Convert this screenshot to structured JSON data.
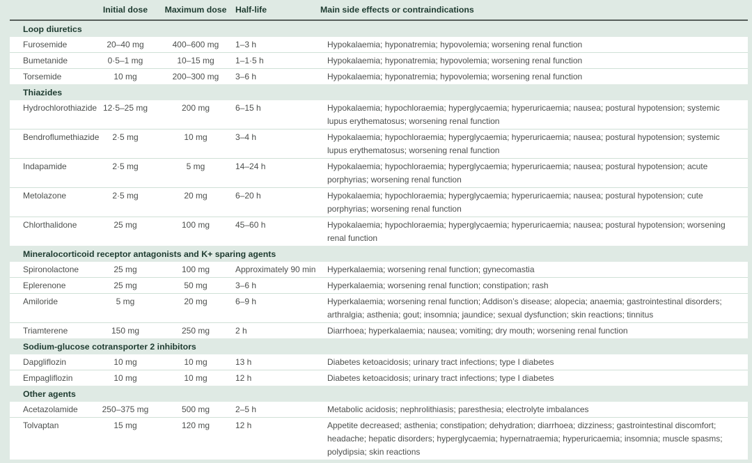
{
  "colors": {
    "band": "#dfeae4",
    "row_bg": "#ffffff",
    "rule": "#565e5a",
    "heading_text": "#1e3b30",
    "body_text": "#4c4f4d",
    "separator": "#cfe0d6"
  },
  "table": {
    "columns": [
      "",
      "Initial dose",
      "Maximum dose",
      "Half-life",
      "Main side effects or contraindications"
    ],
    "sections": [
      {
        "title": "Loop diuretics",
        "rows": [
          {
            "drug": "Furosemide",
            "initial": "20–40 mg",
            "max": "400–600 mg",
            "half_life": "1–3 h",
            "effects": "Hypokalaemia; hyponatremia; hypovolemia; worsening renal function"
          },
          {
            "drug": "Bumetanide",
            "initial": "0·5–1 mg",
            "max": "10–15 mg",
            "half_life": "1–1·5 h",
            "effects": "Hypokalaemia; hyponatremia; hypovolemia; worsening renal function"
          },
          {
            "drug": "Torsemide",
            "initial": "10 mg",
            "max": "200–300 mg",
            "half_life": "3–6 h",
            "effects": "Hypokalaemia; hyponatremia; hypovolemia; worsening renal function"
          }
        ]
      },
      {
        "title": "Thiazides",
        "rows": [
          {
            "drug": "Hydrochlorothiazide",
            "initial": "12·5–25 mg",
            "max": "200 mg",
            "half_life": "6–15 h",
            "effects": "Hypokalaemia; hypochloraemia; hyperglycaemia; hyperuricaemia; nausea; postural hypotension; systemic lupus erythematosus; worsening renal function"
          },
          {
            "drug": "Bendroflumethiazide",
            "initial": "2·5 mg",
            "max": "10 mg",
            "half_life": "3–4 h",
            "effects": "Hypokalaemia; hypochloraemia; hyperglycaemia; hyperuricaemia; nausea; postural hypotension; systemic lupus erythematosus; worsening renal function"
          },
          {
            "drug": "Indapamide",
            "initial": "2·5 mg",
            "max": "5 mg",
            "half_life": "14–24 h",
            "effects": "Hypokalaemia; hypochloraemia; hyperglycaemia; hyperuricaemia; nausea; postural hypotension; acute porphyrias; worsening renal function"
          },
          {
            "drug": "Metolazone",
            "initial": "2·5 mg",
            "max": "20 mg",
            "half_life": "6–20 h",
            "effects": "Hypokalaemia; hypochloraemia; hyperglycaemia; hyperuricaemia; nausea; postural hypotension; cute porphyrias; worsening renal function"
          },
          {
            "drug": "Chlorthalidone",
            "initial": "25 mg",
            "max": "100 mg",
            "half_life": "45–60 h",
            "effects": "Hypokalaemia; hypochloraemia; hyperglycaemia; hyperuricaemia; nausea; postural hypotension; worsening renal function"
          }
        ]
      },
      {
        "title": "Mineralocorticoid receptor antagonists and K+ sparing agents",
        "rows": [
          {
            "drug": "Spironolactone",
            "initial": "25 mg",
            "max": "100 mg",
            "half_life": "Approximately 90 min",
            "effects": "Hyperkalaemia; worsening renal function; gynecomastia"
          },
          {
            "drug": "Eplerenone",
            "initial": "25 mg",
            "max": "50 mg",
            "half_life": "3–6 h",
            "effects": "Hyperkalaemia; worsening renal function; constipation; rash"
          },
          {
            "drug": "Amiloride",
            "initial": "5 mg",
            "max": "20 mg",
            "half_life": "6–9 h",
            "effects": "Hyperkalaemia; worsening renal function; Addison’s disease; alopecia; anaemia; gastrointestinal disorders; arthralgia; asthenia; gout; insomnia; jaundice; sexual dysfunction; skin reactions; tinnitus"
          },
          {
            "drug": "Triamterene",
            "initial": "150 mg",
            "max": "250 mg",
            "half_life": "2 h",
            "effects": "Diarrhoea; hyperkalaemia; nausea; vomiting; dry mouth; worsening renal function"
          }
        ]
      },
      {
        "title": "Sodium-glucose cotransporter 2 inhibitors",
        "rows": [
          {
            "drug": "Dapgliflozin",
            "initial": "10 mg",
            "max": "10 mg",
            "half_life": "13 h",
            "effects": "Diabetes ketoacidosis; urinary tract infections; type I diabetes"
          },
          {
            "drug": "Empagliflozin",
            "initial": "10 mg",
            "max": "10 mg",
            "half_life": "12 h",
            "effects": "Diabetes ketoacidosis; urinary tract infections; type I diabetes"
          }
        ]
      },
      {
        "title": "Other agents",
        "rows": [
          {
            "drug": "Acetazolamide",
            "initial": "250–375 mg",
            "max": "500 mg",
            "half_life": "2–5 h",
            "effects": "Metabolic acidosis; nephrolithiasis; paresthesia; electrolyte imbalances"
          },
          {
            "drug": "Tolvaptan",
            "initial": "15 mg",
            "max": "120 mg",
            "half_life": "12 h",
            "effects": "Appetite decreased; asthenia; constipation; dehydration; diarrhoea; dizziness; gastrointestinal discomfort; headache; hepatic disorders; hyperglycaemia; hypernatraemia; hyperuricaemia; insomnia; muscle spasms; polydipsia; skin reactions"
          }
        ]
      }
    ]
  }
}
